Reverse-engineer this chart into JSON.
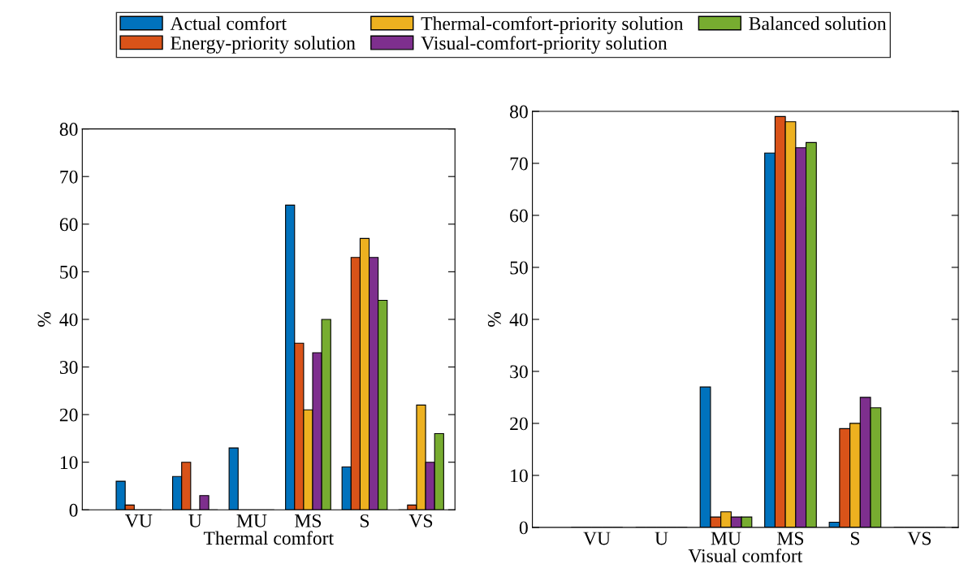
{
  "chart_data": [
    {
      "type": "bar",
      "xlabel": "Thermal comfort",
      "ylabel": "%",
      "categories": [
        "VU",
        "U",
        "MU",
        "MS",
        "S",
        "VS"
      ],
      "ylim": [
        0,
        80
      ],
      "yticks": [
        0,
        10,
        20,
        30,
        40,
        50,
        60,
        70,
        80
      ],
      "legend": "top",
      "series": [
        {
          "name": "Actual comfort",
          "color": "#0072bd",
          "values": [
            6,
            7,
            13,
            64,
            9,
            0
          ]
        },
        {
          "name": "Energy-priority solution",
          "color": "#d95319",
          "values": [
            1,
            10,
            0,
            35,
            53,
            1
          ]
        },
        {
          "name": "Thermal-comfort-priority solution",
          "color": "#edb120",
          "values": [
            0,
            0,
            0,
            21,
            57,
            22
          ]
        },
        {
          "name": "Visual-comfort-priority solution",
          "color": "#7e2f8e",
          "values": [
            0,
            3,
            0,
            33,
            53,
            10
          ]
        },
        {
          "name": "Balanced solution",
          "color": "#77ac30",
          "values": [
            0,
            0,
            0,
            40,
            44,
            16
          ]
        }
      ]
    },
    {
      "type": "bar",
      "xlabel": "Visual comfort",
      "ylabel": "%",
      "categories": [
        "VU",
        "U",
        "MU",
        "MS",
        "S",
        "VS"
      ],
      "ylim": [
        0,
        80
      ],
      "yticks": [
        0,
        10,
        20,
        30,
        40,
        50,
        60,
        70,
        80
      ],
      "series": [
        {
          "color": "#0072bd",
          "values": [
            0,
            0,
            27,
            72,
            1,
            0
          ]
        },
        {
          "color": "#d95319",
          "values": [
            0,
            0,
            2,
            79,
            19,
            0
          ]
        },
        {
          "color": "#edb120",
          "values": [
            0,
            0,
            3,
            78,
            20,
            0
          ]
        },
        {
          "color": "#7e2f8e",
          "values": [
            0,
            0,
            2,
            73,
            25,
            0
          ]
        },
        {
          "color": "#77ac30",
          "values": [
            0,
            0,
            2,
            74,
            23,
            0
          ]
        }
      ]
    }
  ]
}
